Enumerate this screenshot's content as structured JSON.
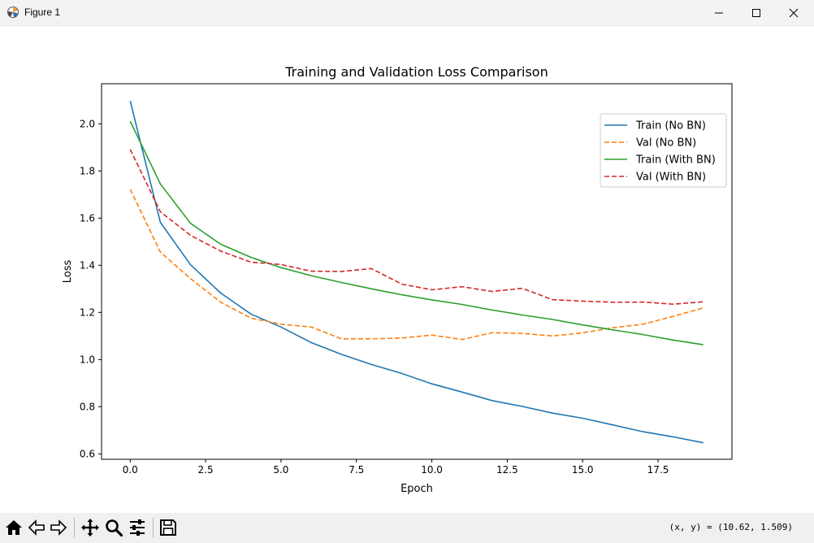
{
  "window": {
    "title": "Figure 1",
    "icon": "matplotlib-icon",
    "controls": [
      "minimize-icon",
      "maximize-icon",
      "close-icon"
    ]
  },
  "toolbar": {
    "buttons": [
      "home-icon",
      "back-icon",
      "forward-icon",
      "pan-icon",
      "zoom-icon",
      "configure-subplots-icon",
      "save-icon"
    ],
    "coords": "(x, y) = (10.62, 1.509)"
  },
  "chart_data": {
    "type": "line",
    "title": "Training and Validation Loss Comparison",
    "xlabel": "Epoch",
    "ylabel": "Loss",
    "xlim": [
      -0.95,
      19.95
    ],
    "ylim": [
      0.577,
      2.17
    ],
    "xticks": [
      0.0,
      2.5,
      5.0,
      7.5,
      10.0,
      12.5,
      15.0,
      17.5
    ],
    "xtick_labels": [
      "0.0",
      "2.5",
      "5.0",
      "7.5",
      "10.0",
      "12.5",
      "15.0",
      "17.5"
    ],
    "yticks": [
      0.6,
      0.8,
      1.0,
      1.2,
      1.4,
      1.6,
      1.8,
      2.0
    ],
    "ytick_labels": [
      "0.6",
      "0.8",
      "1.0",
      "1.2",
      "1.4",
      "1.6",
      "1.8",
      "2.0"
    ],
    "grid": false,
    "legend_position": "top-right",
    "x": [
      0,
      1,
      2,
      3,
      4,
      5,
      6,
      7,
      8,
      9,
      10,
      11,
      12,
      13,
      14,
      15,
      16,
      17,
      18,
      19
    ],
    "series": [
      {
        "name": "Train (No BN)",
        "color": "#1f77b4",
        "dashed": false,
        "values": [
          2.097,
          1.582,
          1.402,
          1.282,
          1.193,
          1.138,
          1.072,
          1.022,
          0.979,
          0.941,
          0.897,
          0.862,
          0.826,
          0.801,
          0.773,
          0.751,
          0.723,
          0.694,
          0.672,
          0.647
        ]
      },
      {
        "name": "Val (No BN)",
        "color": "#ff7f0e",
        "dashed": true,
        "values": [
          1.722,
          1.456,
          1.343,
          1.243,
          1.176,
          1.15,
          1.138,
          1.088,
          1.088,
          1.091,
          1.104,
          1.085,
          1.114,
          1.111,
          1.1,
          1.113,
          1.135,
          1.15,
          1.183,
          1.219
        ]
      },
      {
        "name": "Train (With BN)",
        "color": "#2ca02c",
        "dashed": false,
        "values": [
          2.011,
          1.745,
          1.578,
          1.489,
          1.434,
          1.39,
          1.356,
          1.327,
          1.3,
          1.275,
          1.253,
          1.234,
          1.21,
          1.189,
          1.17,
          1.147,
          1.126,
          1.106,
          1.083,
          1.063
        ]
      },
      {
        "name": "Val (With BN)",
        "color": "#d62728",
        "dashed": true,
        "values": [
          1.891,
          1.627,
          1.527,
          1.46,
          1.413,
          1.403,
          1.375,
          1.374,
          1.386,
          1.32,
          1.296,
          1.309,
          1.289,
          1.302,
          1.254,
          1.248,
          1.243,
          1.244,
          1.235,
          1.245
        ]
      }
    ]
  }
}
